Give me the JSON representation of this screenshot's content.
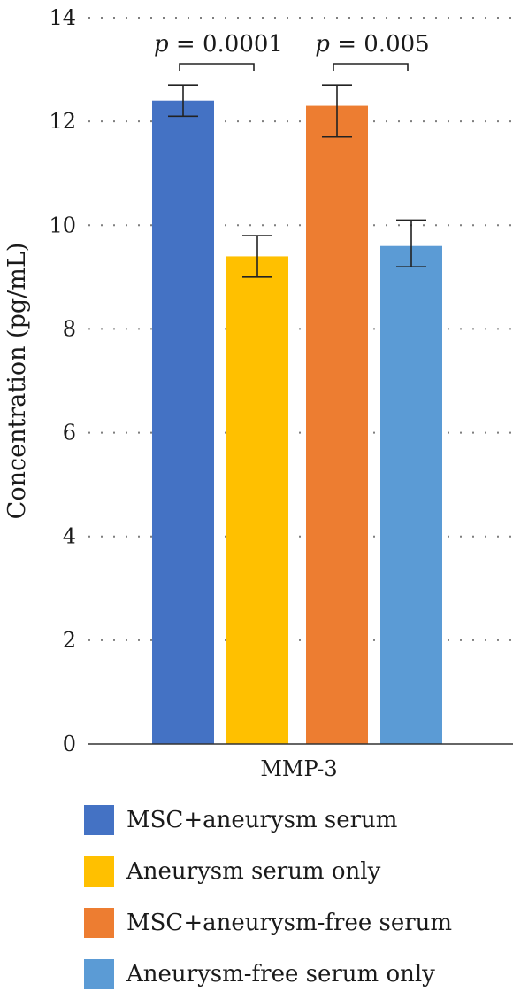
{
  "chart_data": {
    "type": "bar",
    "categories": [
      "MMP-3"
    ],
    "ylabel": "Concentration (pg/mL)",
    "ylim": [
      0,
      14
    ],
    "yticks": [
      0,
      2,
      4,
      6,
      8,
      10,
      12,
      14
    ],
    "grid": "dotted horizontal",
    "legend_position": "bottom",
    "series": [
      {
        "name": "MSC+aneurysm serum",
        "value": 12.4,
        "error": [
          12.1,
          12.7
        ],
        "color": "#4472c4"
      },
      {
        "name": "Aneurysm serum only",
        "value": 9.4,
        "error": [
          9.0,
          9.8
        ],
        "color": "#ffc000"
      },
      {
        "name": "MSC+aneurysm-free serum",
        "value": 12.3,
        "error": [
          11.7,
          12.7
        ],
        "color": "#ed7d31"
      },
      {
        "name": "Aneurysm-free serum only",
        "value": 9.6,
        "error": [
          9.2,
          10.1
        ],
        "color": "#5b9bd5"
      }
    ],
    "annotations": [
      {
        "between": [
          0,
          1
        ],
        "label": "p = 0.0001"
      },
      {
        "between": [
          2,
          3
        ],
        "label": "p = 0.005"
      }
    ]
  }
}
